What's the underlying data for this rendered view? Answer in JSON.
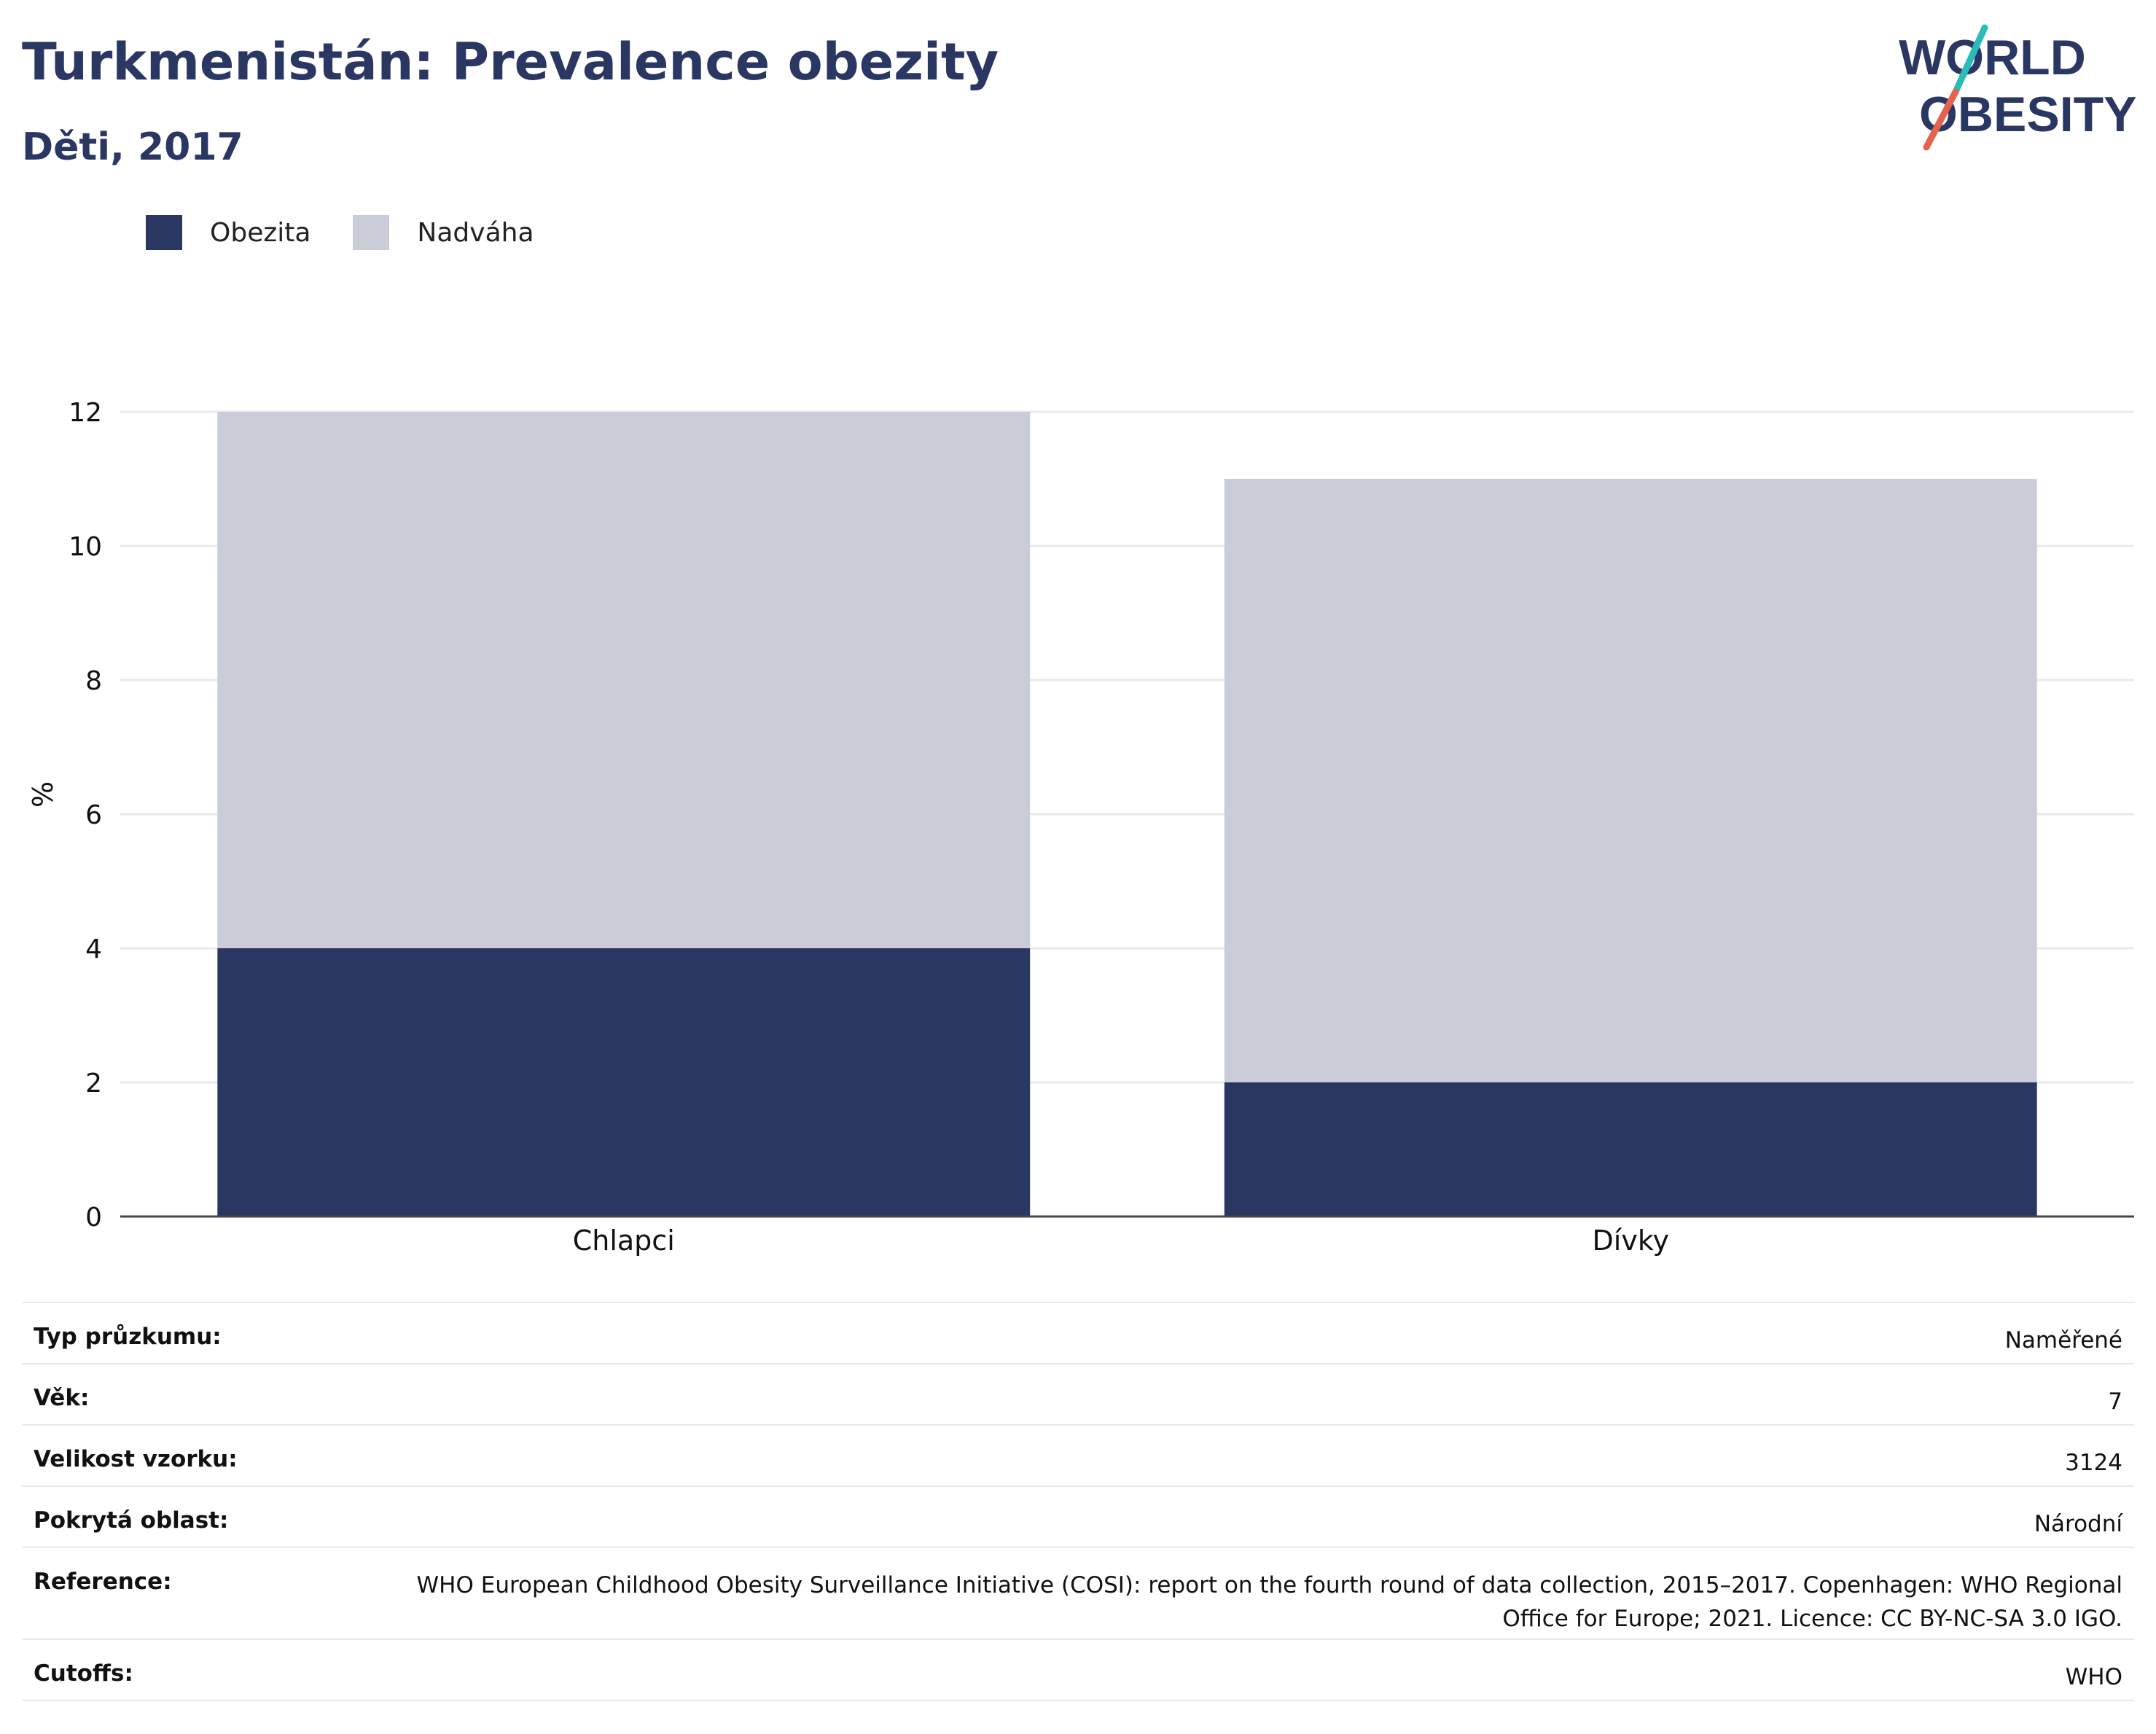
{
  "title": "Turkmenistán: Prevalence obezity",
  "subtitle": "Děti, 2017",
  "logo": {
    "line1": "WORLD",
    "line2": "OBESITY"
  },
  "colors": {
    "obesity": "#2a3763",
    "overweight": "#cacdd8",
    "title": "#2a3763",
    "logo_teal": "#2cbcb8",
    "logo_red": "#e4634f"
  },
  "legend": [
    {
      "label": "Obezita",
      "color": "#2a3763"
    },
    {
      "label": "Nadváha",
      "color": "#cacdd8"
    }
  ],
  "chart_data": {
    "type": "bar",
    "stacked": true,
    "categories": [
      "Chlapci",
      "Dívky"
    ],
    "series": [
      {
        "name": "Obezita",
        "values": [
          4,
          2
        ]
      },
      {
        "name": "Nadváha",
        "values": [
          8,
          9
        ]
      }
    ],
    "totals": [
      12,
      11
    ],
    "ylabel": "%",
    "ylim": [
      0,
      12
    ],
    "yticks": [
      0,
      2,
      4,
      6,
      8,
      10,
      12
    ],
    "grid": true,
    "legend_position": "top-left"
  },
  "info": [
    {
      "key": "Typ průzkumu:",
      "value": "Naměřené"
    },
    {
      "key": "Věk:",
      "value": "7"
    },
    {
      "key": "Velikost vzorku:",
      "value": "3124"
    },
    {
      "key": "Pokrytá oblast:",
      "value": "Národní"
    },
    {
      "key": "Reference:",
      "value": "WHO European Childhood Obesity Surveillance Initiative (COSI): report on the fourth round of data collection, 2015–2017. Copenhagen: WHO Regional Office for Europe; 2021. Licence: CC BY-NC-SA 3.0 IGO."
    },
    {
      "key": "Cutoffs:",
      "value": "WHO"
    }
  ]
}
